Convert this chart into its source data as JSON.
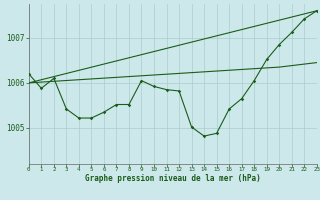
{
  "bg_color": "#cde8ea",
  "grid_color": "#aacccc",
  "line_color": "#1a5c1a",
  "xlabel": "Graphe pression niveau de la mer (hPa)",
  "xlim": [
    0,
    23
  ],
  "ylim": [
    1004.2,
    1007.75
  ],
  "yticks": [
    1005,
    1006,
    1007
  ],
  "xticks": [
    0,
    1,
    2,
    3,
    4,
    5,
    6,
    7,
    8,
    9,
    10,
    11,
    12,
    13,
    14,
    15,
    16,
    17,
    18,
    19,
    20,
    21,
    22,
    23
  ],
  "line1_x": [
    0,
    1,
    2,
    3,
    4,
    5,
    6,
    7,
    8,
    9,
    10,
    11,
    12,
    13,
    14,
    15,
    16,
    17,
    18,
    19,
    20,
    21,
    22,
    23
  ],
  "line1_y": [
    1006.2,
    1005.88,
    1006.1,
    1005.42,
    1005.22,
    1005.22,
    1005.35,
    1005.52,
    1005.52,
    1006.05,
    1005.92,
    1005.85,
    1005.82,
    1005.02,
    1004.82,
    1004.88,
    1005.42,
    1005.65,
    1006.05,
    1006.52,
    1006.85,
    1007.12,
    1007.42,
    1007.6
  ],
  "line2_x": [
    0,
    23
  ],
  "line2_y": [
    1006.0,
    1007.6
  ],
  "line3_x": [
    0,
    20,
    23
  ],
  "line3_y": [
    1006.0,
    1006.35,
    1006.45
  ]
}
